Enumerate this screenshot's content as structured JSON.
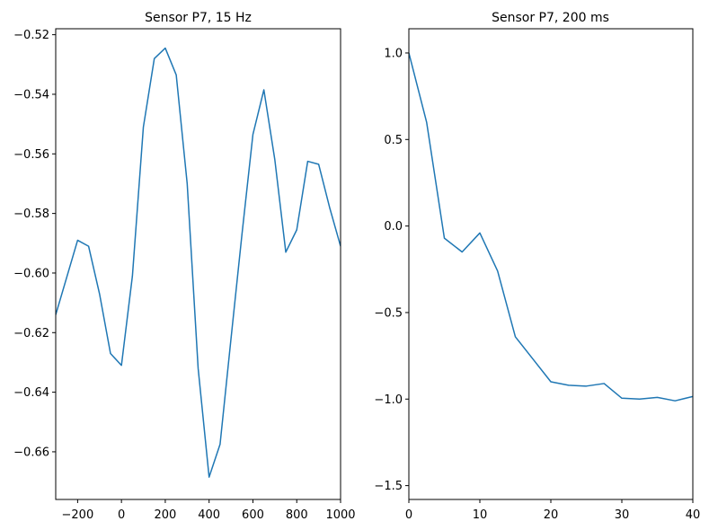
{
  "chart_data": [
    {
      "type": "line",
      "title": "Sensor P7, 15 Hz",
      "xlabel": "",
      "ylabel": "",
      "xlim": [
        -300,
        1000
      ],
      "ylim": [
        -0.676,
        -0.518
      ],
      "xticks": [
        -200,
        0,
        200,
        400,
        600,
        800,
        1000
      ],
      "xtick_labels": [
        "−200",
        "0",
        "200",
        "400",
        "600",
        "800",
        "1000"
      ],
      "yticks": [
        -0.52,
        -0.54,
        -0.56,
        -0.58,
        -0.6,
        -0.62,
        -0.64,
        -0.66
      ],
      "ytick_labels": [
        "−0.52",
        "−0.54",
        "−0.56",
        "−0.58",
        "−0.60",
        "−0.62",
        "−0.64",
        "−0.66"
      ],
      "grid": false,
      "series": [
        {
          "color": "#1f77b4",
          "x": [
            -300,
            -200,
            -150,
            -100,
            -50,
            0,
            50,
            100,
            150,
            200,
            250,
            300,
            350,
            400,
            450,
            500,
            550,
            600,
            650,
            700,
            750,
            800,
            850,
            900,
            950,
            1000
          ],
          "y": [
            -0.614,
            -0.589,
            -0.591,
            -0.607,
            -0.627,
            -0.631,
            -0.601,
            -0.551,
            -0.528,
            -0.5245,
            -0.5335,
            -0.57,
            -0.632,
            -0.6685,
            -0.6575,
            -0.622,
            -0.587,
            -0.5535,
            -0.5385,
            -0.562,
            -0.593,
            -0.5855,
            -0.5625,
            -0.5635,
            -0.578,
            -0.591
          ]
        }
      ]
    },
    {
      "type": "line",
      "title": "Sensor P7, 200 ms",
      "xlabel": "",
      "ylabel": "",
      "xlim": [
        0,
        40
      ],
      "ylim": [
        -1.58,
        1.14
      ],
      "xticks": [
        0,
        10,
        20,
        30,
        40
      ],
      "xtick_labels": [
        "0",
        "10",
        "20",
        "30",
        "40"
      ],
      "yticks": [
        1.0,
        0.5,
        0.0,
        -0.5,
        -1.0,
        -1.5
      ],
      "ytick_labels": [
        "1.0",
        "0.5",
        "0.0",
        "−0.5",
        "−1.0",
        "−1.5"
      ],
      "grid": false,
      "series": [
        {
          "color": "#1f77b4",
          "x": [
            0,
            2.5,
            5,
            7.5,
            10,
            12.5,
            15,
            17.5,
            20,
            22.5,
            25,
            27.5,
            30,
            32.5,
            35,
            37.5,
            40
          ],
          "y": [
            1.0,
            0.6,
            -0.07,
            -0.15,
            -0.04,
            -0.26,
            -0.64,
            -0.77,
            -0.9,
            -0.92,
            -0.925,
            -0.91,
            -0.995,
            -1.0,
            -0.99,
            -1.01,
            -0.985
          ]
        }
      ]
    }
  ]
}
